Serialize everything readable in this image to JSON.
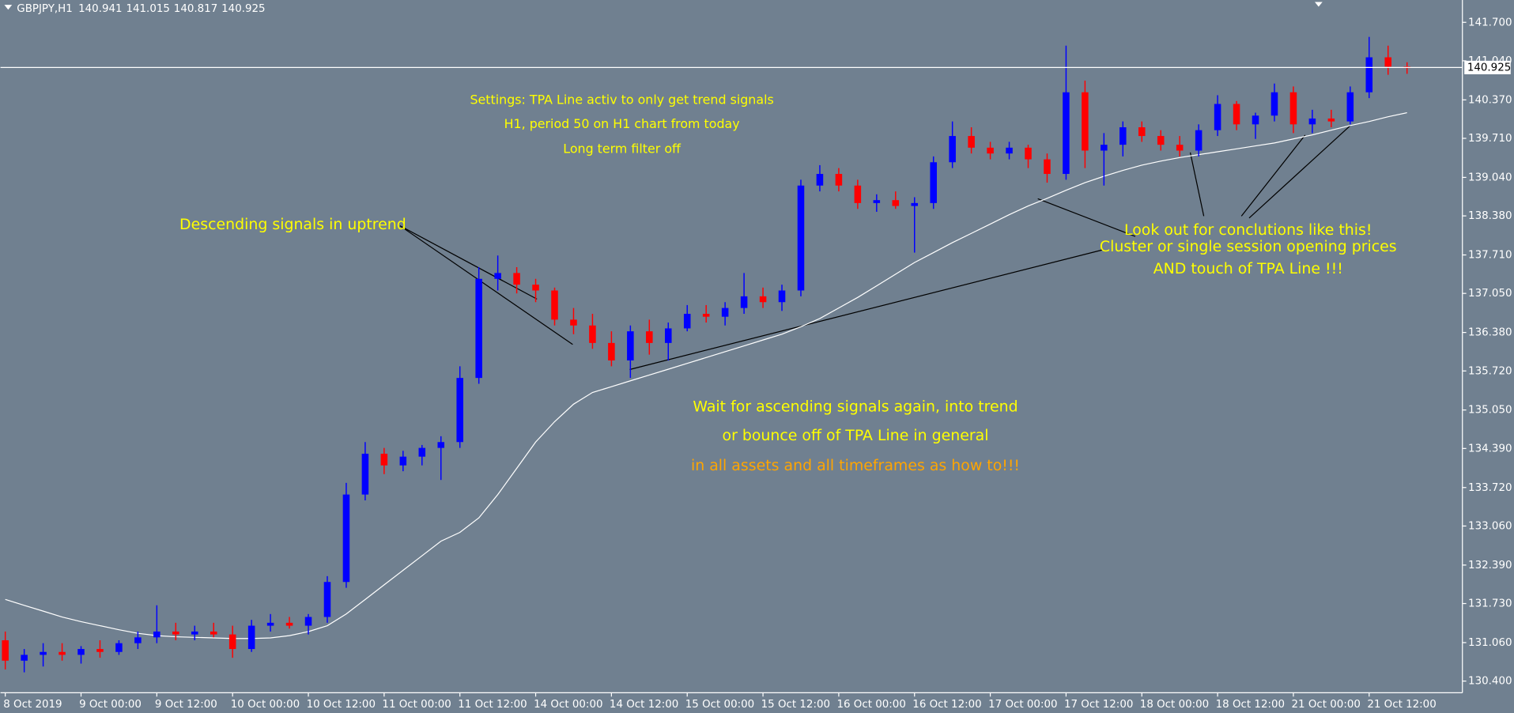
{
  "chart_data": {
    "type": "candlestick",
    "title": "GBPJPY,H1",
    "background": "#708090",
    "up_color": "#0000ff",
    "down_color": "#ff0000",
    "categories": [
      "8 Oct 2019",
      null,
      null,
      null,
      "9 Oct 00:00",
      null,
      null,
      null,
      "9 Oct 12:00",
      null,
      null,
      null,
      "10 Oct 00:00",
      null,
      null,
      null,
      "10 Oct 12:00",
      null,
      null,
      null,
      "11 Oct 00:00",
      null,
      null,
      null,
      "11 Oct 12:00",
      null,
      null,
      null,
      "14 Oct 00:00",
      null,
      null,
      null,
      "14 Oct 12:00",
      null,
      null,
      null,
      "15 Oct 00:00",
      null,
      null,
      null,
      "15 Oct 12:00",
      null,
      null,
      null,
      "16 Oct 00:00",
      null,
      null,
      null,
      "16 Oct 12:00",
      null,
      null,
      null,
      "17 Oct 00:00",
      null,
      null,
      null,
      "17 Oct 12:00",
      null,
      null,
      null,
      "18 Oct 00:00",
      null,
      null,
      null,
      "18 Oct 12:00",
      null,
      null,
      null,
      "21 Oct 00:00",
      null,
      null,
      null,
      "21 Oct 12:00",
      null,
      null
    ],
    "open": [
      131.1,
      130.75,
      130.85,
      130.9,
      130.85,
      130.95,
      130.9,
      131.05,
      131.15,
      131.25,
      131.2,
      131.25,
      131.2,
      130.95,
      131.35,
      131.4,
      131.35,
      131.5,
      132.1,
      133.6,
      134.3,
      134.1,
      134.25,
      134.4,
      134.5,
      135.6,
      137.3,
      137.4,
      137.2,
      137.1,
      136.6,
      136.5,
      136.2,
      135.9,
      136.4,
      136.2,
      136.45,
      136.7,
      136.65,
      136.8,
      137.0,
      136.9,
      137.1,
      138.9,
      139.1,
      138.9,
      138.6,
      138.65,
      138.55,
      138.6,
      139.3,
      139.75,
      139.55,
      139.45,
      139.55,
      139.35,
      139.1,
      140.5,
      139.5,
      139.6,
      139.9,
      139.75,
      139.6,
      139.5,
      139.85,
      140.3,
      139.95,
      140.1,
      140.5,
      139.95,
      140.05,
      140.0,
      140.5,
      141.1,
      140.941
    ],
    "high": [
      131.25,
      130.95,
      131.05,
      131.05,
      131.0,
      131.1,
      131.1,
      131.25,
      131.7,
      131.4,
      131.35,
      131.4,
      131.35,
      131.45,
      131.55,
      131.5,
      131.55,
      132.2,
      133.8,
      134.5,
      134.4,
      134.35,
      134.45,
      134.6,
      135.8,
      137.5,
      137.7,
      137.5,
      137.3,
      137.15,
      136.8,
      136.7,
      136.4,
      136.5,
      136.6,
      136.55,
      136.85,
      136.85,
      136.9,
      137.4,
      137.15,
      137.2,
      139.0,
      139.25,
      139.2,
      139.0,
      138.75,
      138.8,
      138.7,
      139.4,
      140.0,
      139.9,
      139.65,
      139.65,
      139.6,
      139.45,
      141.3,
      140.7,
      139.8,
      140.0,
      140.0,
      139.85,
      139.75,
      139.95,
      140.45,
      140.35,
      140.15,
      140.65,
      140.6,
      140.2,
      140.2,
      140.6,
      141.45,
      141.3,
      141.015
    ],
    "low": [
      130.6,
      130.55,
      130.65,
      130.75,
      130.7,
      130.8,
      130.85,
      130.95,
      131.05,
      131.1,
      131.1,
      131.15,
      130.8,
      130.9,
      131.25,
      131.3,
      131.2,
      131.4,
      132.0,
      133.5,
      133.95,
      134.0,
      134.1,
      133.85,
      134.4,
      135.5,
      137.1,
      137.05,
      136.9,
      136.5,
      136.35,
      136.1,
      135.8,
      135.6,
      136.0,
      135.9,
      136.4,
      136.55,
      136.5,
      136.7,
      136.8,
      136.75,
      137.0,
      138.8,
      138.8,
      138.5,
      138.45,
      138.5,
      137.75,
      138.5,
      139.2,
      139.45,
      139.35,
      139.35,
      139.2,
      138.95,
      139.0,
      139.2,
      138.9,
      139.4,
      139.65,
      139.5,
      139.4,
      139.4,
      139.75,
      139.85,
      139.7,
      140.0,
      139.8,
      139.8,
      139.9,
      139.95,
      140.4,
      140.8,
      140.817
    ],
    "close": [
      130.75,
      130.85,
      130.9,
      130.85,
      130.95,
      130.9,
      131.05,
      131.15,
      131.25,
      131.2,
      131.25,
      131.2,
      130.95,
      131.35,
      131.4,
      131.35,
      131.5,
      132.1,
      133.6,
      134.3,
      134.1,
      134.25,
      134.4,
      134.5,
      135.6,
      137.3,
      137.4,
      137.2,
      137.1,
      136.6,
      136.5,
      136.2,
      135.9,
      136.4,
      136.2,
      136.45,
      136.7,
      136.65,
      136.8,
      137.0,
      136.9,
      137.1,
      138.9,
      139.1,
      138.9,
      138.6,
      138.65,
      138.55,
      138.6,
      139.3,
      139.75,
      139.55,
      139.45,
      139.55,
      139.35,
      139.1,
      140.5,
      139.5,
      139.6,
      139.9,
      139.75,
      139.6,
      139.5,
      139.85,
      140.3,
      139.95,
      140.1,
      140.5,
      139.95,
      140.05,
      140.0,
      140.5,
      141.1,
      140.94,
      140.925
    ],
    "ma": {
      "color": "#ffffff",
      "values": [
        131.8,
        131.7,
        131.6,
        131.5,
        131.42,
        131.35,
        131.28,
        131.22,
        131.18,
        131.16,
        131.15,
        131.14,
        131.13,
        131.13,
        131.14,
        131.18,
        131.25,
        131.35,
        131.55,
        131.8,
        132.05,
        132.3,
        132.55,
        132.8,
        132.95,
        133.2,
        133.6,
        134.05,
        134.5,
        134.85,
        135.15,
        135.35,
        135.45,
        135.55,
        135.65,
        135.75,
        135.85,
        135.95,
        136.05,
        136.15,
        136.25,
        136.35,
        136.48,
        136.62,
        136.8,
        136.98,
        137.18,
        137.38,
        137.58,
        137.75,
        137.92,
        138.08,
        138.24,
        138.4,
        138.55,
        138.68,
        138.82,
        138.95,
        139.06,
        139.16,
        139.25,
        139.32,
        139.38,
        139.43,
        139.48,
        139.53,
        139.58,
        139.63,
        139.7,
        139.77,
        139.85,
        139.93,
        140.0,
        140.08,
        140.15
      ]
    },
    "current_price": 140.925,
    "ylim": [
      130.2,
      142.05
    ],
    "yticks": [
      {
        "value": 141.7,
        "label": "141.700"
      },
      {
        "value": 141.04,
        "label": "141.040"
      },
      {
        "value": 140.37,
        "label": "140.370"
      },
      {
        "value": 139.71,
        "label": "139.710"
      },
      {
        "value": 139.04,
        "label": "139.040"
      },
      {
        "value": 138.38,
        "label": "138.380"
      },
      {
        "value": 137.71,
        "label": "137.710"
      },
      {
        "value": 137.05,
        "label": "137.050"
      },
      {
        "value": 136.38,
        "label": "136.380"
      },
      {
        "value": 135.72,
        "label": "135.720"
      },
      {
        "value": 135.05,
        "label": "135.050"
      },
      {
        "value": 134.39,
        "label": "134.390"
      },
      {
        "value": 133.72,
        "label": "133.720"
      },
      {
        "value": 133.06,
        "label": "133.060"
      },
      {
        "value": 132.39,
        "label": "132.390"
      },
      {
        "value": 131.73,
        "label": "131.730"
      },
      {
        "value": 131.06,
        "label": "131.060"
      },
      {
        "value": 130.4,
        "label": "130.400"
      }
    ],
    "annotations": [
      {
        "text": "Settings: TPA Line activ to only get trend signals",
        "color": "#ffff00"
      },
      {
        "text": "H1, period 50 on H1 chart from today",
        "color": "#ffff00"
      },
      {
        "text": "Long term filter off",
        "color": "#ffff00"
      },
      {
        "text": "Descending signals in uptrend",
        "color": "#ffff00"
      },
      {
        "text": "Look out for conclutions like this!",
        "color": "#ffff00"
      },
      {
        "text": "Cluster or single session opening prices",
        "color": "#ffff00"
      },
      {
        "text": "AND touch of TPA Line !!!",
        "color": "#ffff00"
      },
      {
        "text": "Wait for ascending signals again, into trend",
        "color": "#ffff00"
      },
      {
        "text": "or bounce off of TPA Line in general",
        "color": "#ffff00"
      },
      {
        "text": "in all assets and all timeframes as how to!!!",
        "color": "#ffa500"
      }
    ]
  }
}
